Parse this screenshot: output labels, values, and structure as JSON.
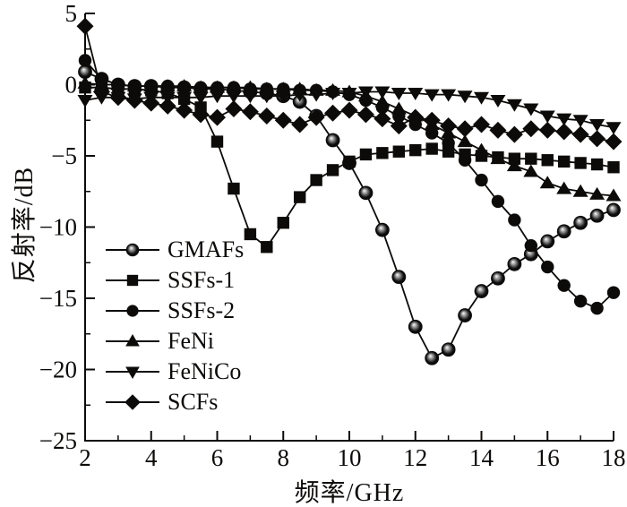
{
  "chart_data": {
    "type": "line",
    "title": "",
    "xlabel": "频率/GHz",
    "ylabel": "反射率/dB",
    "xlim": [
      2,
      18
    ],
    "ylim": [
      -25,
      5
    ],
    "grid": false,
    "legend_position": "inside-left",
    "line_color": "#0d0b09",
    "background_color": "#ffffff",
    "x_major_ticks": [
      2,
      4,
      6,
      8,
      10,
      12,
      14,
      16,
      18
    ],
    "x_tick_labels": [
      "2",
      "4",
      "6",
      "8",
      "10",
      "12",
      "14",
      "16",
      "18"
    ],
    "x_minor_ticks": [
      3,
      5,
      7,
      9,
      11,
      13,
      15,
      17
    ],
    "y_major_ticks": [
      5,
      0,
      -5,
      -10,
      -15,
      -20,
      -25
    ],
    "y_tick_labels": [
      "5",
      "0",
      "−5",
      "−10",
      "−15",
      "−20",
      "−25"
    ],
    "y_minor_ticks": [
      2.5,
      -2.5,
      -7.5,
      -12.5,
      -17.5,
      -22.5
    ],
    "x": [
      2,
      2.5,
      3,
      3.5,
      4,
      4.5,
      5,
      5.5,
      6,
      6.5,
      7,
      7.5,
      8,
      8.5,
      9,
      9.5,
      10,
      10.5,
      11,
      11.5,
      12,
      12.5,
      13,
      13.5,
      14,
      14.5,
      15,
      15.5,
      16,
      16.5,
      17,
      17.5,
      18
    ],
    "series": [
      {
        "name": "GMAFs",
        "marker": "sphere",
        "values": [
          0.9,
          0.4,
          0.0,
          -0.1,
          -0.1,
          -0.2,
          -0.2,
          -0.3,
          -0.3,
          -0.4,
          -0.5,
          -0.6,
          -0.8,
          -1.2,
          -2.2,
          -3.9,
          -5.5,
          -7.6,
          -10.2,
          -13.5,
          -17.0,
          -19.2,
          -18.6,
          -16.2,
          -14.5,
          -13.6,
          -12.6,
          -11.9,
          -11.0,
          -10.3,
          -9.7,
          -9.2,
          -8.8
        ]
      },
      {
        "name": "SSFs-1",
        "marker": "square",
        "values": [
          -0.2,
          -0.2,
          -0.3,
          -0.3,
          -0.4,
          -0.6,
          -1.0,
          -1.6,
          -4.0,
          -7.3,
          -10.5,
          -11.4,
          -9.7,
          -7.9,
          -6.7,
          -6.0,
          -5.4,
          -4.9,
          -4.8,
          -4.7,
          -4.6,
          -4.5,
          -4.7,
          -4.9,
          -5.0,
          -5.1,
          -5.2,
          -5.2,
          -5.3,
          -5.4,
          -5.5,
          -5.6,
          -5.8
        ]
      },
      {
        "name": "SSFs-2",
        "marker": "circle",
        "values": [
          1.7,
          0.4,
          0.0,
          -0.1,
          -0.1,
          -0.1,
          -0.2,
          -0.2,
          -0.2,
          -0.2,
          -0.3,
          -0.3,
          -0.3,
          -0.4,
          -0.4,
          -0.5,
          -0.7,
          -1.1,
          -1.6,
          -2.2,
          -2.8,
          -3.4,
          -4.1,
          -5.3,
          -6.7,
          -8.2,
          -9.5,
          -11.3,
          -12.8,
          -14.1,
          -15.2,
          -15.7,
          -14.6
        ]
      },
      {
        "name": "FeNi",
        "marker": "triangle-up",
        "values": [
          0.1,
          0.0,
          0.0,
          -0.1,
          -0.1,
          -0.1,
          -0.1,
          -0.2,
          -0.2,
          -0.2,
          -0.2,
          -0.3,
          -0.3,
          -0.3,
          -0.4,
          -0.4,
          -0.5,
          -0.8,
          -1.2,
          -1.7,
          -2.2,
          -2.8,
          -3.4,
          -4.0,
          -4.6,
          -5.2,
          -5.7,
          -6.1,
          -6.9,
          -7.3,
          -7.5,
          -7.7,
          -7.8
        ]
      },
      {
        "name": "FeNiCo",
        "marker": "triangle-down",
        "values": [
          -1.1,
          -0.9,
          -0.9,
          -1.0,
          -0.9,
          -0.9,
          -0.9,
          -0.9,
          -0.8,
          -0.8,
          -0.8,
          -0.8,
          -0.8,
          -0.7,
          -0.7,
          -0.6,
          -0.6,
          -0.5,
          -0.5,
          -0.6,
          -0.6,
          -0.7,
          -0.7,
          -0.8,
          -0.9,
          -1.1,
          -1.4,
          -1.7,
          -2.2,
          -2.4,
          -2.5,
          -2.8,
          -3.0
        ]
      },
      {
        "name": "SCFs",
        "marker": "diamond",
        "values": [
          4.1,
          -0.5,
          -0.9,
          -1.1,
          -1.3,
          -1.5,
          -1.8,
          -2.1,
          -2.3,
          -1.7,
          -1.9,
          -2.2,
          -2.5,
          -2.8,
          -2.3,
          -2.0,
          -1.8,
          -2.1,
          -2.4,
          -2.9,
          -2.3,
          -2.5,
          -2.9,
          -3.1,
          -2.8,
          -3.2,
          -3.5,
          -3.1,
          -3.2,
          -3.3,
          -3.5,
          -3.8,
          -4.0
        ]
      }
    ]
  }
}
